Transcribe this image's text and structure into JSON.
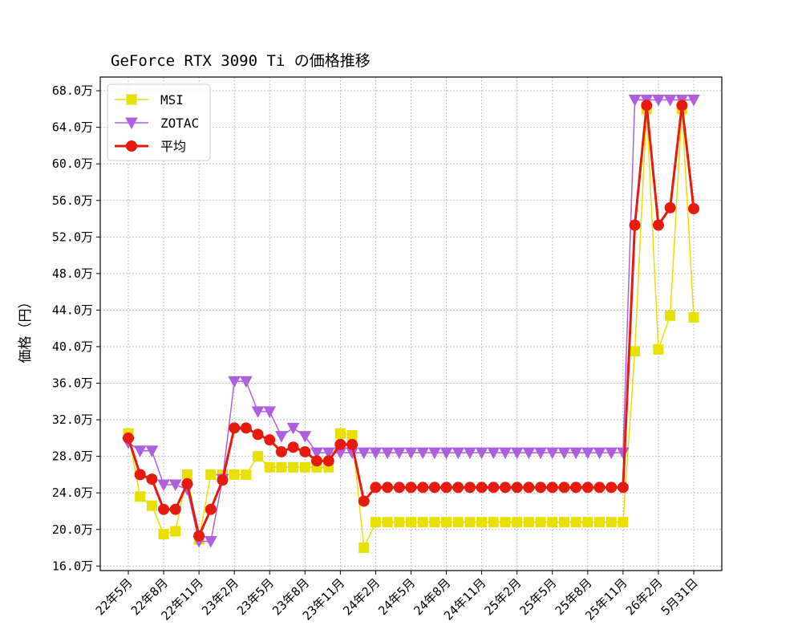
{
  "chart_data": {
    "type": "line",
    "title": "GeForce RTX 3090 Ti の価格推移",
    "xlabel": "",
    "ylabel": "価格（円）",
    "ylim": [
      155000,
      695000
    ],
    "yticks": [
      160000,
      200000,
      240000,
      280000,
      320000,
      360000,
      400000,
      440000,
      480000,
      520000,
      560000,
      600000,
      640000,
      680000
    ],
    "ytick_labels": [
      "16.0万",
      "20.0万",
      "24.0万",
      "28.0万",
      "32.0万",
      "36.0万",
      "40.0万",
      "44.0万",
      "48.0万",
      "52.0万",
      "56.0万",
      "60.0万",
      "64.0万",
      "68.0万"
    ],
    "xtick_positions": [
      0,
      3,
      6,
      9,
      12,
      15,
      18,
      21,
      24,
      27,
      30,
      33,
      36,
      39,
      42,
      45,
      48
    ],
    "xtick_labels": [
      "22年5月",
      "22年8月",
      "22年11月",
      "23年2月",
      "23年5月",
      "23年8月",
      "23年11月",
      "24年2月",
      "24年5月",
      "24年8月",
      "24年11月",
      "25年2月",
      "25年5月",
      "25年8月",
      "25年11月",
      "26年2月",
      "5月31日"
    ],
    "grid": true,
    "legend_position": "upper-left",
    "series": [
      {
        "name": "MSI",
        "color": "#e8e000",
        "marker": "square",
        "values": [
          305000,
          236000,
          226000,
          195000,
          198000,
          260000,
          189000,
          260000,
          260000,
          260000,
          260000,
          280000,
          268000,
          268000,
          268000,
          268000,
          268000,
          268000,
          305000,
          303000,
          180000,
          208000,
          208000,
          208000,
          208000,
          208000,
          208000,
          208000,
          208000,
          208000,
          208000,
          208000,
          208000,
          208000,
          208000,
          208000,
          208000,
          208000,
          208000,
          208000,
          208000,
          208000,
          208000,
          395000,
          660000,
          397000,
          434000,
          660000,
          432000
        ]
      },
      {
        "name": "ZOTAC",
        "color": "#b05ee0",
        "marker": "triangle-down",
        "values": [
          295000,
          286000,
          286000,
          249000,
          249000,
          244000,
          187000,
          187000,
          255000,
          362000,
          362000,
          329000,
          329000,
          302000,
          311000,
          302000,
          284000,
          284000,
          284000,
          284000,
          284000,
          284000,
          284000,
          284000,
          284000,
          284000,
          284000,
          284000,
          284000,
          284000,
          284000,
          284000,
          284000,
          284000,
          284000,
          284000,
          284000,
          284000,
          284000,
          284000,
          284000,
          284000,
          284000,
          670000,
          670000,
          670000,
          670000,
          670000,
          670000
        ]
      },
      {
        "name": "平均",
        "color": "#e61b0e",
        "marker": "circle",
        "values": [
          300000,
          260000,
          255000,
          222000,
          222000,
          250000,
          193000,
          222000,
          254000,
          311000,
          311000,
          304000,
          298000,
          285000,
          290000,
          285000,
          275000,
          275000,
          293000,
          293000,
          231000,
          246000,
          246000,
          246000,
          246000,
          246000,
          246000,
          246000,
          246000,
          246000,
          246000,
          246000,
          246000,
          246000,
          246000,
          246000,
          246000,
          246000,
          246000,
          246000,
          246000,
          246000,
          246000,
          533000,
          664000,
          533000,
          552000,
          664000,
          551000
        ]
      }
    ]
  }
}
